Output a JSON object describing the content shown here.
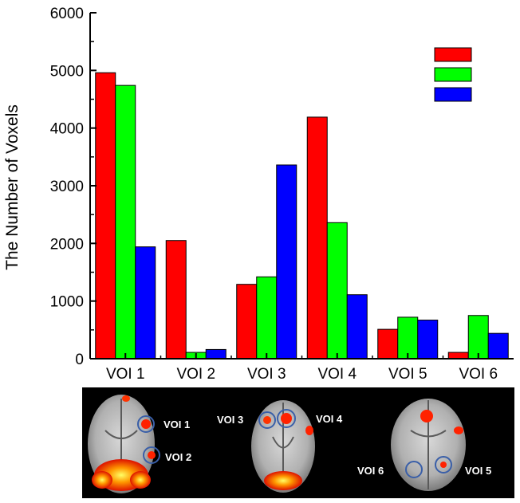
{
  "chart_data": {
    "type": "bar",
    "title": "",
    "xlabel": "",
    "ylabel": "The Number of Voxels",
    "ylim": [
      0,
      6000
    ],
    "yticks": [
      0,
      1000,
      2000,
      3000,
      4000,
      5000,
      6000
    ],
    "categories": [
      "VOI 1",
      "VOI 2",
      "VOI 3",
      "VOI 4",
      "VOI 5",
      "VOI 6"
    ],
    "series": [
      {
        "color": "#ff0000",
        "values": [
          4960,
          2050,
          1290,
          4190,
          510,
          110
        ]
      },
      {
        "color": "#00ff00",
        "values": [
          4740,
          110,
          1420,
          2360,
          720,
          750
        ]
      },
      {
        "color": "#0000ff",
        "values": [
          1940,
          160,
          3360,
          1110,
          670,
          440
        ]
      }
    ],
    "legend": {
      "placement": "top-right",
      "labels": [
        "",
        "",
        ""
      ]
    },
    "grid": false
  },
  "brain_panel": {
    "background": "#000000",
    "circle_color": "#3a5fa8",
    "labels": [
      "VOI 1",
      "VOI 2",
      "VOI 3",
      "VOI 4",
      "VOI 6",
      "VOI 5"
    ]
  }
}
